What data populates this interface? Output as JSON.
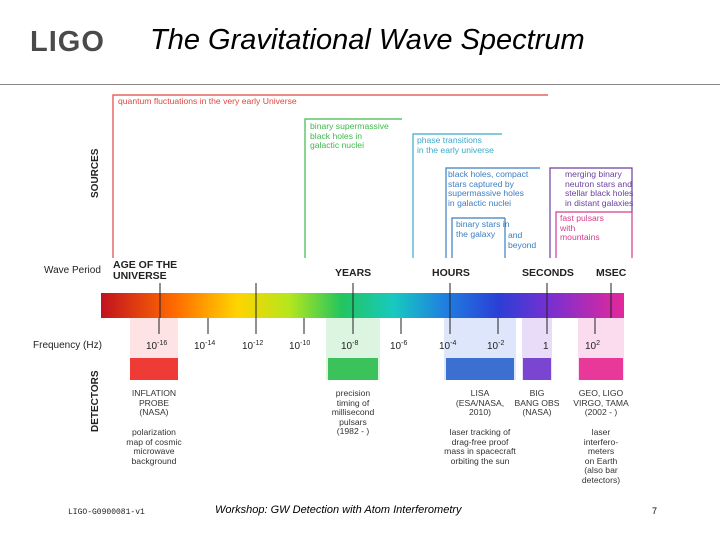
{
  "header": {
    "logo": "LIGO",
    "title": "The Gravitational Wave Spectrum"
  },
  "labels": {
    "sources": "SOURCES",
    "detectors": "DETECTORS",
    "wave_period": "Wave Period",
    "frequency": "Frequency (Hz)"
  },
  "sources": [
    {
      "text": "quantum fluctuations in the very early Universe",
      "color": "#e0453f"
    },
    {
      "text": "binary supermassive\nblack holes in\ngalactic nuclei",
      "color": "#3cb94a"
    },
    {
      "text": "phase transitions\nin the early universe",
      "color": "#3aa9c8"
    },
    {
      "text": "black holes, compact\nstars captured by\nsupermassive holes\nin galactic nuclei",
      "color": "#3b7ec0"
    },
    {
      "text": "binary stars in\nthe galaxy",
      "color": "#3b7ec0"
    },
    {
      "text": "and\nbeyond",
      "color": "#3b7ec0"
    },
    {
      "text": "merging binary\nneutron stars and\nstellar black holes\nin distant galaxies",
      "color": "#6b3fa0"
    },
    {
      "text": "fast pulsars\nwith\nmountains",
      "color": "#d63b8b"
    }
  ],
  "periods": [
    {
      "text": "AGE OF THE\nUNIVERSE"
    },
    {
      "text": "YEARS"
    },
    {
      "text": "HOURS"
    },
    {
      "text": "SECONDS"
    },
    {
      "text": "MSEC"
    }
  ],
  "frequencies": [
    {
      "base": "10",
      "exp": "-16"
    },
    {
      "base": "10",
      "exp": "-14"
    },
    {
      "base": "10",
      "exp": "-12"
    },
    {
      "base": "10",
      "exp": "-10"
    },
    {
      "base": "10",
      "exp": "-8"
    },
    {
      "base": "10",
      "exp": "-6"
    },
    {
      "base": "10",
      "exp": "-4"
    },
    {
      "base": "10",
      "exp": "-2"
    },
    {
      "base": "1",
      "exp": ""
    },
    {
      "base": "10",
      "exp": "2"
    }
  ],
  "detectors": [
    {
      "name": "INFLATION\nPROBE\n(NASA)",
      "method": "polarization\nmap of cosmic\nmicrowave\nbackground",
      "color": "#ef3b36"
    },
    {
      "name": "precision\ntiming of\nmillisecond\npulsars\n(1982 - )",
      "method": "",
      "color": "#3cc25a"
    },
    {
      "name": "LISA\n(ESA/NASA,\n2010)",
      "method": "laser tracking of\ndrag-free proof\nmass in spacecraft\norbiting the sun",
      "color": "#3b6fd0"
    },
    {
      "name": "BIG\nBANG OBS\n(NASA)",
      "method": "",
      "color": "#7a45d0"
    },
    {
      "name": "GEO, LIGO\nVIRGO, TAMA\n(2002 - )",
      "method": "laser\ninterfero-\nmeters\non Earth\n(also bar\ndetectors)",
      "color": "#e8399a"
    }
  ],
  "footer": {
    "doc_id": "LIGO-G0900081-v1",
    "workshop": "Workshop: GW Detection with Atom Interferometry",
    "page": "7"
  }
}
